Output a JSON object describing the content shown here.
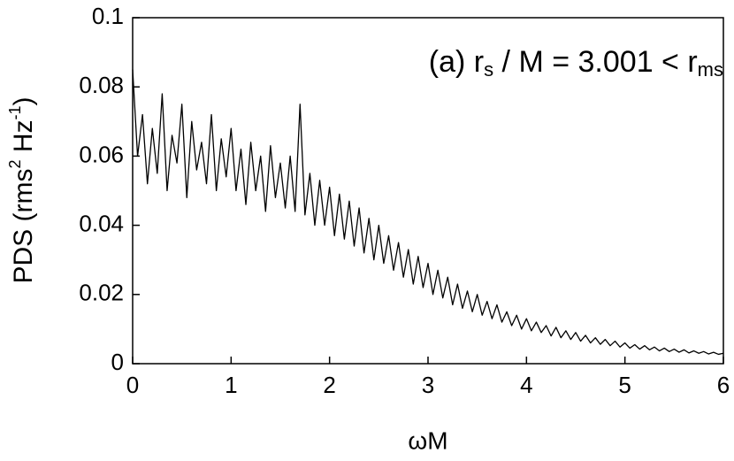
{
  "chart_data": {
    "type": "line",
    "annotation": {
      "prefix": "(a) r",
      "sub1": "s",
      "middle": " / M = 3.001 < r",
      "sub2": "ms"
    },
    "y_label": {
      "main": "PDS (rms",
      "sup1": "2",
      "middle": " Hz",
      "sup2": "-1",
      "end": ")"
    },
    "x_label": "ωM",
    "x": [
      0,
      0.05,
      0.1,
      0.15,
      0.2,
      0.25,
      0.3,
      0.35,
      0.4,
      0.45,
      0.5,
      0.55,
      0.6,
      0.65,
      0.7,
      0.75,
      0.8,
      0.85,
      0.9,
      0.95,
      1,
      1.05,
      1.1,
      1.15,
      1.2,
      1.25,
      1.3,
      1.35,
      1.4,
      1.45,
      1.5,
      1.55,
      1.6,
      1.65,
      1.7,
      1.75,
      1.8,
      1.85,
      1.9,
      1.95,
      2,
      2.05,
      2.1,
      2.15,
      2.2,
      2.25,
      2.3,
      2.35,
      2.4,
      2.45,
      2.5,
      2.55,
      2.6,
      2.65,
      2.7,
      2.75,
      2.8,
      2.85,
      2.9,
      2.95,
      3,
      3.05,
      3.1,
      3.15,
      3.2,
      3.25,
      3.3,
      3.35,
      3.4,
      3.45,
      3.5,
      3.55,
      3.6,
      3.65,
      3.7,
      3.75,
      3.8,
      3.85,
      3.9,
      3.95,
      4,
      4.05,
      4.1,
      4.15,
      4.2,
      4.25,
      4.3,
      4.35,
      4.4,
      4.45,
      4.5,
      4.55,
      4.6,
      4.65,
      4.7,
      4.75,
      4.8,
      4.85,
      4.9,
      4.95,
      5,
      5.05,
      5.1,
      5.15,
      5.2,
      5.25,
      5.3,
      5.35,
      5.4,
      5.45,
      5.5,
      5.55,
      5.6,
      5.65,
      5.7,
      5.75,
      5.8,
      5.85,
      5.9,
      5.95,
      6
    ],
    "series": [
      {
        "color": "#000000",
        "values": [
          0.085,
          0.06,
          0.072,
          0.052,
          0.068,
          0.055,
          0.078,
          0.05,
          0.066,
          0.058,
          0.075,
          0.048,
          0.07,
          0.056,
          0.064,
          0.052,
          0.072,
          0.05,
          0.065,
          0.054,
          0.068,
          0.05,
          0.062,
          0.046,
          0.064,
          0.05,
          0.06,
          0.044,
          0.063,
          0.048,
          0.058,
          0.045,
          0.06,
          0.044,
          0.075,
          0.043,
          0.055,
          0.04,
          0.053,
          0.04,
          0.051,
          0.037,
          0.049,
          0.036,
          0.047,
          0.034,
          0.045,
          0.032,
          0.042,
          0.03,
          0.04,
          0.029,
          0.037,
          0.027,
          0.035,
          0.025,
          0.033,
          0.023,
          0.031,
          0.022,
          0.029,
          0.02,
          0.027,
          0.019,
          0.025,
          0.017,
          0.023,
          0.016,
          0.021,
          0.015,
          0.02,
          0.014,
          0.018,
          0.013,
          0.017,
          0.012,
          0.015,
          0.011,
          0.014,
          0.01,
          0.013,
          0.0095,
          0.012,
          0.009,
          0.011,
          0.008,
          0.0105,
          0.0075,
          0.0095,
          0.007,
          0.009,
          0.0065,
          0.0082,
          0.006,
          0.0075,
          0.0056,
          0.007,
          0.0052,
          0.0065,
          0.0048,
          0.006,
          0.0045,
          0.0055,
          0.0042,
          0.0052,
          0.004,
          0.0048,
          0.0037,
          0.0045,
          0.0035,
          0.0042,
          0.0033,
          0.004,
          0.0031,
          0.0037,
          0.003,
          0.0035,
          0.0028,
          0.0033,
          0.0027,
          0.003
        ]
      }
    ],
    "xlim": [
      0,
      6
    ],
    "xticks": [
      0,
      1,
      2,
      3,
      4,
      5,
      6
    ],
    "ylim": [
      0,
      0.1
    ],
    "yticks": [
      0,
      0.02,
      0.04,
      0.06,
      0.08,
      0.1
    ],
    "grid": false
  }
}
